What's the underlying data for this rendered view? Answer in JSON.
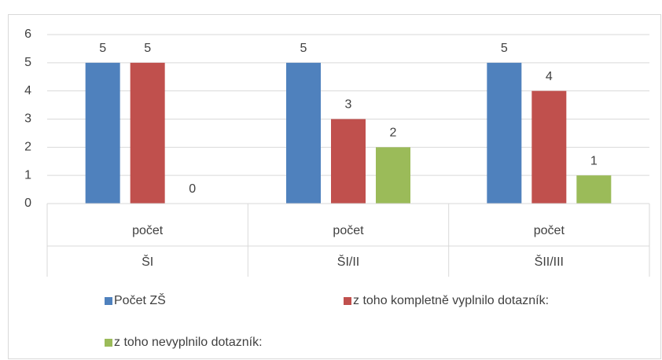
{
  "chart_data": {
    "type": "bar",
    "categories": [
      "ŠI",
      "ŠI/II",
      "ŠII/III"
    ],
    "subcategories": [
      "počet",
      "počet",
      "počet"
    ],
    "series": [
      {
        "name": "Počet ZŠ",
        "color": "#4f81bd",
        "values": [
          5,
          5,
          5
        ]
      },
      {
        "name": "z toho kompletně vyplnilo dotazník:",
        "color": "#c0504d",
        "values": [
          5,
          3,
          4
        ]
      },
      {
        "name": "z toho nevyplnilo dotazník:",
        "color": "#9bbb59",
        "values": [
          0,
          2,
          1
        ]
      }
    ],
    "ylim": [
      0,
      6
    ],
    "yticks": [
      0,
      1,
      2,
      3,
      4,
      5,
      6
    ],
    "grid": true,
    "legend": "bottom"
  }
}
